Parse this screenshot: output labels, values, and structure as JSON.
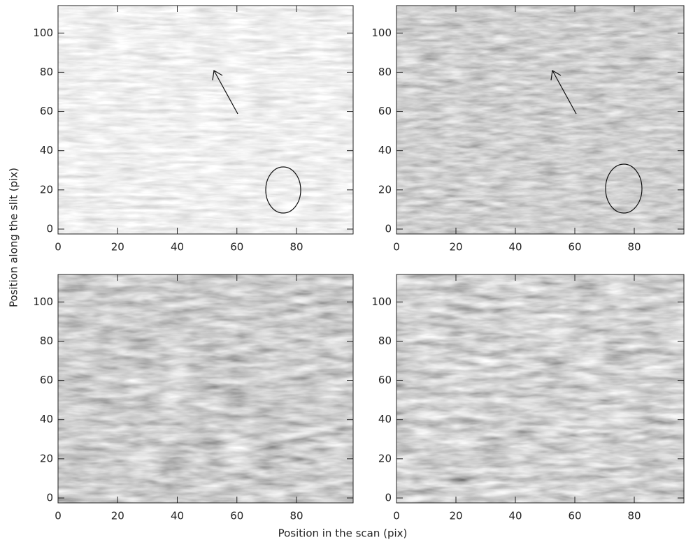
{
  "chart_data": [
    {
      "type": "image",
      "xlim": [
        0,
        99
      ],
      "ylim": [
        -2.5,
        114
      ],
      "xticks": [
        0,
        20,
        40,
        60,
        80
      ],
      "yticks": [
        0,
        20,
        40,
        60,
        80,
        100
      ]
    },
    {
      "type": "image",
      "xlim": [
        0,
        96.7
      ],
      "ylim": [
        -2.5,
        114
      ],
      "xticks": [
        0,
        20,
        40,
        60,
        80
      ],
      "yticks": [
        0,
        20,
        40,
        60,
        80,
        100
      ]
    },
    {
      "type": "image",
      "xlim": [
        0,
        99
      ],
      "ylim": [
        -2.5,
        114
      ],
      "xticks": [
        0,
        20,
        40,
        60,
        80
      ],
      "yticks": [
        0,
        20,
        40,
        60,
        80,
        100
      ]
    },
    {
      "type": "image",
      "xlim": [
        0,
        96.7
      ],
      "ylim": [
        -2.5,
        114
      ],
      "xticks": [
        0,
        20,
        40,
        60,
        80
      ],
      "yticks": [
        0,
        20,
        40,
        60,
        80,
        100
      ]
    }
  ],
  "figure": {
    "xlabel": "Position in the scan (pix)",
    "ylabel": "Position along the slit (pix)"
  }
}
